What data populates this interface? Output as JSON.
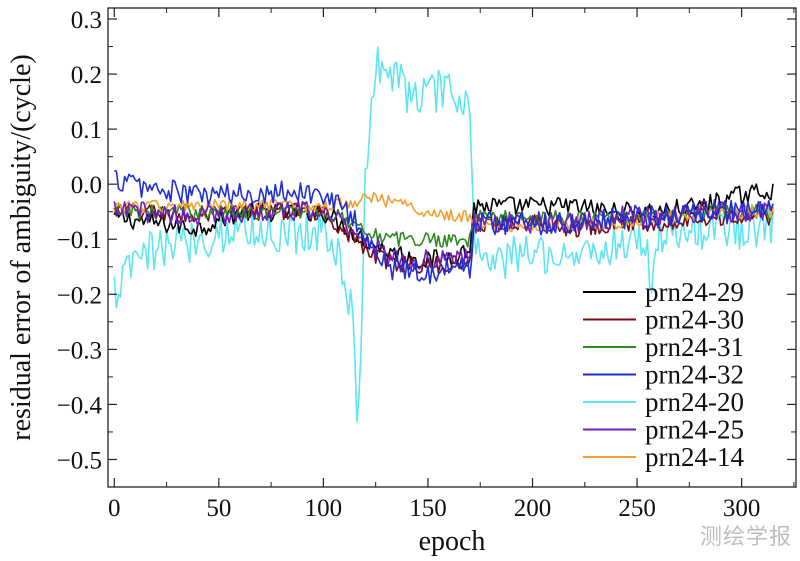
{
  "chart_data": {
    "type": "line",
    "title": "",
    "xlabel": "epoch",
    "ylabel": "residual error of ambiguity/(cycle)",
    "xlim": [
      -3,
      326
    ],
    "ylim": [
      -0.55,
      0.32
    ],
    "xticks": [
      0,
      50,
      100,
      150,
      200,
      250,
      300
    ],
    "xtick_labels": [
      "0",
      "50",
      "100",
      "150",
      "200",
      "250",
      "300"
    ],
    "yticks": [
      0.3,
      0.2,
      0.1,
      0.0,
      -0.1,
      -0.2,
      -0.3,
      -0.4,
      -0.5
    ],
    "ytick_labels": [
      "0.3",
      "0.2",
      "0.1",
      "0.0",
      "−0.1",
      "−0.2",
      "−0.3",
      "−0.4",
      "−0.5"
    ],
    "grid": false,
    "legend_position": "lower-right",
    "series": [
      {
        "name": "prn24-29",
        "color": "#000000",
        "x": [
          0,
          20,
          40,
          60,
          80,
          100,
          115,
          120,
          130,
          150,
          170,
          172,
          200,
          220,
          240,
          260,
          280,
          300,
          315
        ],
        "y": [
          -0.06,
          -0.07,
          -0.08,
          -0.05,
          -0.05,
          -0.05,
          -0.09,
          -0.1,
          -0.12,
          -0.14,
          -0.12,
          -0.04,
          -0.04,
          -0.04,
          -0.05,
          -0.05,
          -0.04,
          -0.02,
          -0.01
        ]
      },
      {
        "name": "prn24-30",
        "color": "#7a0a14",
        "x": [
          0,
          20,
          40,
          60,
          80,
          100,
          115,
          120,
          130,
          150,
          170,
          172,
          200,
          220,
          240,
          260,
          280,
          300,
          315
        ],
        "y": [
          -0.05,
          -0.05,
          -0.06,
          -0.05,
          -0.05,
          -0.05,
          -0.1,
          -0.12,
          -0.14,
          -0.15,
          -0.14,
          -0.07,
          -0.07,
          -0.08,
          -0.07,
          -0.07,
          -0.06,
          -0.06,
          -0.06
        ]
      },
      {
        "name": "prn24-31",
        "color": "#2e8b1e",
        "x": [
          0,
          20,
          40,
          60,
          80,
          100,
          115,
          120,
          130,
          150,
          170,
          172,
          200,
          220,
          240,
          260,
          280,
          300,
          315
        ],
        "y": [
          -0.05,
          -0.05,
          -0.05,
          -0.05,
          -0.05,
          -0.05,
          -0.07,
          -0.08,
          -0.1,
          -0.1,
          -0.1,
          -0.06,
          -0.06,
          -0.06,
          -0.06,
          -0.06,
          -0.05,
          -0.05,
          -0.05
        ]
      },
      {
        "name": "prn24-32",
        "color": "#1e2fd6",
        "x": [
          0,
          20,
          40,
          60,
          80,
          100,
          115,
          120,
          130,
          150,
          170,
          172,
          200,
          220,
          240,
          260,
          280,
          300,
          315
        ],
        "y": [
          0.01,
          -0.01,
          -0.02,
          -0.02,
          -0.01,
          -0.02,
          -0.06,
          -0.1,
          -0.15,
          -0.16,
          -0.15,
          -0.07,
          -0.07,
          -0.07,
          -0.06,
          -0.06,
          -0.05,
          -0.05,
          -0.05
        ]
      },
      {
        "name": "prn24-20",
        "color": "#5ce6f2",
        "x": [
          0,
          10,
          20,
          40,
          60,
          80,
          100,
          110,
          114,
          116,
          118,
          120,
          124,
          126,
          140,
          160,
          170,
          172,
          180,
          200,
          220,
          240,
          255,
          256,
          260,
          280,
          300,
          315
        ],
        "y": [
          -0.2,
          -0.14,
          -0.12,
          -0.1,
          -0.08,
          -0.09,
          -0.08,
          -0.15,
          -0.25,
          -0.45,
          -0.3,
          0.0,
          0.2,
          0.23,
          0.17,
          0.16,
          0.15,
          -0.1,
          -0.15,
          -0.12,
          -0.13,
          -0.11,
          -0.1,
          -0.2,
          -0.09,
          -0.08,
          -0.08,
          -0.07
        ]
      },
      {
        "name": "prn24-25",
        "color": "#6a1fbf",
        "x": [
          0,
          20,
          40,
          60,
          80,
          100,
          115,
          120,
          130,
          150,
          170,
          172,
          200,
          220,
          240,
          260,
          280,
          300,
          315
        ],
        "y": [
          -0.05,
          -0.05,
          -0.06,
          -0.05,
          -0.05,
          -0.05,
          -0.08,
          -0.1,
          -0.13,
          -0.14,
          -0.13,
          -0.07,
          -0.07,
          -0.07,
          -0.06,
          -0.06,
          -0.05,
          -0.05,
          -0.05
        ]
      },
      {
        "name": "prn24-14",
        "color": "#f2a030",
        "x": [
          0,
          20,
          40,
          60,
          80,
          100,
          115,
          120,
          130,
          150,
          170,
          172,
          200,
          220,
          240,
          260,
          280,
          300,
          315
        ],
        "y": [
          -0.04,
          -0.04,
          -0.04,
          -0.04,
          -0.04,
          -0.04,
          -0.03,
          -0.02,
          -0.03,
          -0.05,
          -0.06,
          -0.07,
          -0.08,
          -0.07,
          -0.07,
          -0.06,
          -0.05,
          -0.05,
          -0.05
        ]
      }
    ]
  },
  "watermark": "测绘学报"
}
